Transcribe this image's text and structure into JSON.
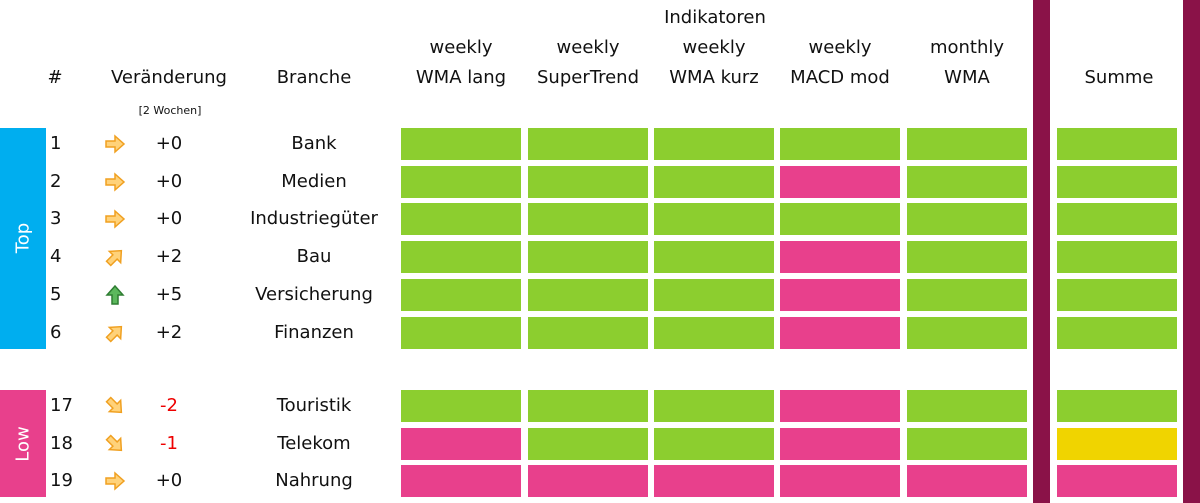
{
  "header": {
    "title": "Indikatoren",
    "rank": "#",
    "change": "Veränderung",
    "change_note": "[2 Wochen]",
    "branch": "Branche",
    "indicators": [
      [
        "weekly",
        "WMA lang"
      ],
      [
        "weekly",
        "SuperTrend"
      ],
      [
        "weekly",
        "WMA kurz"
      ],
      [
        "weekly",
        "MACD mod"
      ],
      [
        "monthly",
        "WMA"
      ]
    ],
    "sum": "Summe"
  },
  "colors": {
    "top": "#00aeef",
    "low": "#e8408c",
    "divider": "#8a1248"
  },
  "groups": [
    {
      "label": "Top",
      "rows": [
        {
          "rank": 1,
          "change": {
            "value": 0,
            "label": "+0"
          },
          "branch": "Bank",
          "cells": [
            "#8cce2f",
            "#8cce2f",
            "#8cce2f",
            "#8cce2f",
            "#8cce2f"
          ],
          "sum": "#8cce2f"
        },
        {
          "rank": 2,
          "change": {
            "value": 0,
            "label": "+0"
          },
          "branch": "Medien",
          "cells": [
            "#8cce2f",
            "#8cce2f",
            "#8cce2f",
            "#e8408c",
            "#8cce2f"
          ],
          "sum": "#8cce2f"
        },
        {
          "rank": 3,
          "change": {
            "value": 0,
            "label": "+0"
          },
          "branch": "Industriegüter",
          "cells": [
            "#8cce2f",
            "#8cce2f",
            "#8cce2f",
            "#8cce2f",
            "#8cce2f"
          ],
          "sum": "#8cce2f"
        },
        {
          "rank": 4,
          "change": {
            "value": 2,
            "label": "+2"
          },
          "branch": "Bau",
          "cells": [
            "#8cce2f",
            "#8cce2f",
            "#8cce2f",
            "#e8408c",
            "#8cce2f"
          ],
          "sum": "#8cce2f"
        },
        {
          "rank": 5,
          "change": {
            "value": 5,
            "label": "+5"
          },
          "branch": "Versicherung",
          "cells": [
            "#8cce2f",
            "#8cce2f",
            "#8cce2f",
            "#e8408c",
            "#8cce2f"
          ],
          "sum": "#8cce2f"
        },
        {
          "rank": 6,
          "change": {
            "value": 2,
            "label": "+2"
          },
          "branch": "Finanzen",
          "cells": [
            "#8cce2f",
            "#8cce2f",
            "#8cce2f",
            "#e8408c",
            "#8cce2f"
          ],
          "sum": "#8cce2f"
        }
      ]
    },
    {
      "label": "Low",
      "rows": [
        {
          "rank": 17,
          "change": {
            "value": -2,
            "label": "-2"
          },
          "branch": "Touristik",
          "cells": [
            "#8cce2f",
            "#8cce2f",
            "#8cce2f",
            "#e8408c",
            "#8cce2f"
          ],
          "sum": "#8cce2f"
        },
        {
          "rank": 18,
          "change": {
            "value": -1,
            "label": "-1"
          },
          "branch": "Telekom",
          "cells": [
            "#e8408c",
            "#8cce2f",
            "#8cce2f",
            "#e8408c",
            "#8cce2f"
          ],
          "sum": "#f0d400"
        },
        {
          "rank": 19,
          "change": {
            "value": 0,
            "label": "+0"
          },
          "branch": "Nahrung",
          "cells": [
            "#e8408c",
            "#e8408c",
            "#e8408c",
            "#e8408c",
            "#e8408c"
          ],
          "sum": "#e8408c"
        }
      ]
    }
  ]
}
